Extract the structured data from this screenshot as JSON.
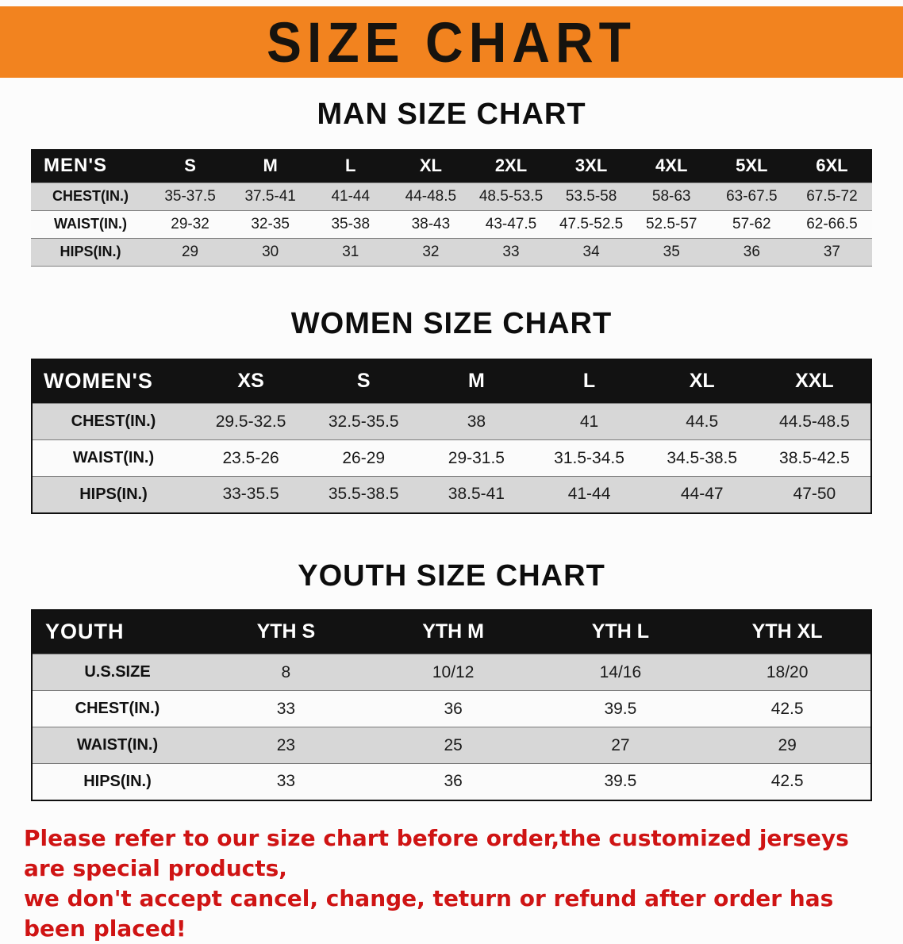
{
  "banner": {
    "title": "SIZE CHART",
    "bg_color": "#f2831f"
  },
  "sections": [
    {
      "id": "men",
      "title": "MAN SIZE CHART",
      "table": {
        "header": [
          "MEN'S",
          "S",
          "M",
          "L",
          "XL",
          "2XL",
          "3XL",
          "4XL",
          "5XL",
          "6XL"
        ],
        "rows": [
          [
            "CHEST(IN.)",
            "35-37.5",
            "37.5-41",
            "41-44",
            "44-48.5",
            "48.5-53.5",
            "53.5-58",
            "58-63",
            "63-67.5",
            "67.5-72"
          ],
          [
            "WAIST(IN.)",
            "29-32",
            "32-35",
            "35-38",
            "38-43",
            "43-47.5",
            "47.5-52.5",
            "52.5-57",
            "57-62",
            "62-66.5"
          ],
          [
            "HIPS(IN.)",
            "29",
            "30",
            "31",
            "32",
            "33",
            "34",
            "35",
            "36",
            "37"
          ]
        ]
      }
    },
    {
      "id": "women",
      "title": "WOMEN SIZE CHART",
      "table": {
        "header": [
          "WOMEN'S",
          "XS",
          "S",
          "M",
          "L",
          "XL",
          "XXL"
        ],
        "rows": [
          [
            "CHEST(IN.)",
            "29.5-32.5",
            "32.5-35.5",
            "38",
            "41",
            "44.5",
            "44.5-48.5"
          ],
          [
            "WAIST(IN.)",
            "23.5-26",
            "26-29",
            "29-31.5",
            "31.5-34.5",
            "34.5-38.5",
            "38.5-42.5"
          ],
          [
            "HIPS(IN.)",
            "33-35.5",
            "35.5-38.5",
            "38.5-41",
            "41-44",
            "44-47",
            "47-50"
          ]
        ]
      }
    },
    {
      "id": "youth",
      "title": "YOUTH SIZE CHART",
      "table": {
        "header": [
          "YOUTH",
          "YTH S",
          "YTH M",
          "YTH L",
          "YTH XL"
        ],
        "rows": [
          [
            "U.S.SIZE",
            "8",
            "10/12",
            "14/16",
            "18/20"
          ],
          [
            "CHEST(IN.)",
            "33",
            "36",
            "39.5",
            "42.5"
          ],
          [
            "WAIST(IN.)",
            "23",
            "25",
            "27",
            "29"
          ],
          [
            "HIPS(IN.)",
            "33",
            "36",
            "39.5",
            "42.5"
          ]
        ]
      }
    }
  ],
  "disclaimer": {
    "line1": "Please refer to our size chart before order,the customized jerseys are special products,",
    "line2": "we don't accept cancel, change, teturn or refund after order has been placed!",
    "color": "#cf1414"
  }
}
